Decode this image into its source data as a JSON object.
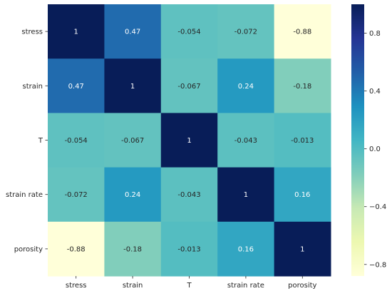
{
  "chart_data": {
    "type": "heatmap",
    "title": "",
    "xlabel": "",
    "ylabel": "",
    "x_categories": [
      "stress",
      "strain",
      "T",
      "strain rate",
      "porosity"
    ],
    "y_categories": [
      "stress",
      "strain",
      "T",
      "strain rate",
      "porosity"
    ],
    "values": [
      [
        1,
        0.47,
        -0.054,
        -0.072,
        -0.88
      ],
      [
        0.47,
        1,
        -0.067,
        0.24,
        -0.18
      ],
      [
        -0.054,
        -0.067,
        1,
        -0.043,
        -0.013
      ],
      [
        -0.072,
        0.24,
        -0.043,
        1,
        0.16
      ],
      [
        -0.88,
        -0.18,
        -0.013,
        0.16,
        1
      ]
    ],
    "cell_labels": [
      [
        "1",
        "0.47",
        "-0.054",
        "-0.072",
        "-0.88"
      ],
      [
        "0.47",
        "1",
        "-0.067",
        "0.24",
        "-0.18"
      ],
      [
        "-0.054",
        "-0.067",
        "1",
        "-0.043",
        "-0.013"
      ],
      [
        "-0.072",
        "0.24",
        "-0.043",
        "1",
        "0.16"
      ],
      [
        "-0.88",
        "-0.18",
        "-0.013",
        "0.16",
        "1"
      ]
    ],
    "colormap": "YlGnBu",
    "vmin": -0.88,
    "vmax": 1,
    "colorbar": {
      "ticks": [
        0.8,
        0.4,
        0.0,
        -0.4,
        -0.8
      ],
      "tick_labels": [
        "0.8",
        "0.4",
        "0.0",
        "−0.4",
        "−0.8"
      ]
    }
  }
}
